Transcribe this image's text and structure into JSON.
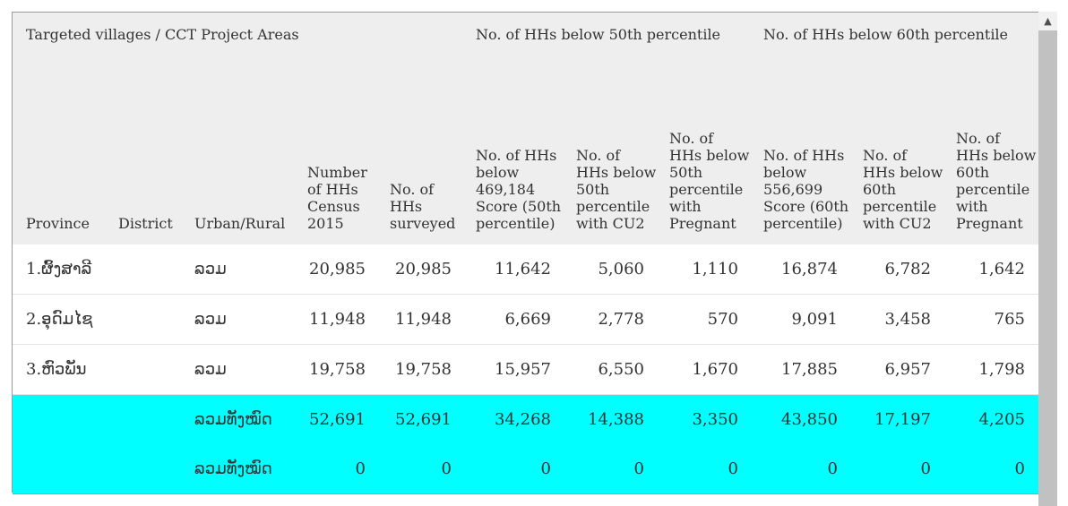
{
  "header": {
    "group_labels": {
      "targeted": "Targeted villages / CCT Project Areas",
      "below50": "No. of HHs below 50th percentile",
      "below60": "No. of HHs below 60th percentile"
    },
    "columns": [
      "Province",
      "District",
      "Urban/Rural",
      "Number of HHs Census 2015",
      "No. of HHs surveyed",
      "No. of HHs below 469,184 Score (50th percentile)",
      "No. of HHs below 50th percentile with CU2",
      "No. of HHs below 50th percentile with Pregnant",
      "No. of HHs below 556,699 Score (60th percentile)",
      "No. of HHs below 60th percentile with CU2",
      "No. of HHs below 60th percentile with Pregnant"
    ]
  },
  "rows": [
    {
      "cells": [
        "1.ຜົ້ງສາລີ",
        "",
        "ລວມ",
        "20,985",
        "20,985",
        "11,642",
        "5,060",
        "1,110",
        "16,874",
        "6,782",
        "1,642"
      ]
    },
    {
      "cells": [
        "2.ອຸດົມໄຊ",
        "",
        "ລວມ",
        "11,948",
        "11,948",
        "6,669",
        "2,778",
        "570",
        "9,091",
        "3,458",
        "765"
      ]
    },
    {
      "cells": [
        "3.ຫົວພັນ",
        "",
        "ລວມ",
        "19,758",
        "19,758",
        "15,957",
        "6,550",
        "1,670",
        "17,885",
        "6,957",
        "1,798"
      ]
    }
  ],
  "totals": [
    {
      "cells": [
        "",
        "",
        "ລວມທັງໝົດ",
        "52,691",
        "52,691",
        "34,268",
        "14,388",
        "3,350",
        "43,850",
        "17,197",
        "4,205"
      ]
    },
    {
      "cells": [
        "",
        "",
        "ລວມທັງໝົດ",
        "0",
        "0",
        "0",
        "0",
        "0",
        "0",
        "0",
        "0"
      ]
    }
  ],
  "colors": {
    "header_bg": "#eeeeee",
    "total_bg": "#00ffff",
    "text": "#333333"
  },
  "scrollbar": {
    "up_icon": "chevron-up-icon"
  }
}
